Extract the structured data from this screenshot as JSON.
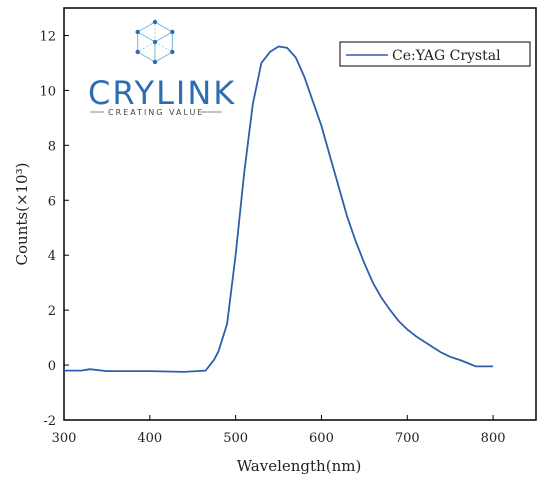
{
  "logo": {
    "wordmark": "CRYLINK",
    "tagline": "CREATING VALUE",
    "color": "#2d6db0",
    "accent_color": "#6fb8d8"
  },
  "chart_data": {
    "type": "line",
    "title": "",
    "xlabel": "Wavelength(nm)",
    "ylabel": "Counts(×10³)",
    "xlim": [
      300,
      850
    ],
    "ylim": [
      -2,
      13
    ],
    "xticks": [
      300,
      400,
      500,
      600,
      700,
      800
    ],
    "xtick_labels": [
      "300",
      "400",
      "500",
      "600",
      "700",
      "800"
    ],
    "yticks": [
      -2,
      0,
      2,
      4,
      6,
      8,
      10,
      12
    ],
    "ytick_labels": [
      "-2",
      "0",
      "2",
      "4",
      "6",
      "8",
      "10",
      "12"
    ],
    "grid": false,
    "legend_position": "top-right",
    "series": [
      {
        "name": "Ce:YAG Crystal",
        "color": "#2f5fa8",
        "x": [
          300,
          320,
          330,
          350,
          400,
          440,
          455,
          465,
          475,
          480,
          490,
          500,
          510,
          520,
          530,
          540,
          550,
          560,
          570,
          580,
          590,
          600,
          610,
          620,
          630,
          640,
          650,
          660,
          670,
          680,
          690,
          700,
          710,
          720,
          730,
          740,
          750,
          760,
          770,
          780,
          790,
          800
        ],
        "y": [
          -0.2,
          -0.2,
          -0.15,
          -0.22,
          -0.22,
          -0.25,
          -0.22,
          -0.2,
          0.2,
          0.5,
          1.5,
          4.0,
          7.0,
          9.5,
          11.0,
          11.4,
          11.6,
          11.55,
          11.2,
          10.5,
          9.6,
          8.7,
          7.6,
          6.5,
          5.4,
          4.5,
          3.7,
          3.0,
          2.45,
          2.0,
          1.6,
          1.3,
          1.05,
          0.85,
          0.65,
          0.45,
          0.3,
          0.2,
          0.08,
          -0.05,
          -0.05,
          -0.05
        ]
      }
    ]
  }
}
